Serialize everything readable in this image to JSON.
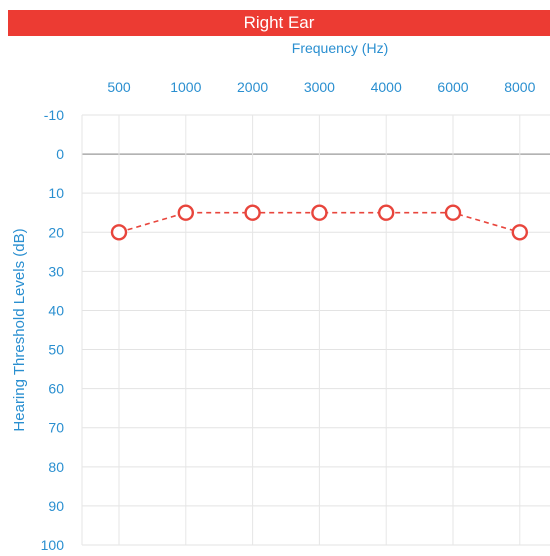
{
  "header": {
    "title": "Right Ear"
  },
  "chart_data": {
    "type": "line",
    "title": "Right Ear",
    "xlabel": "Frequency (Hz)",
    "ylabel": "Hearing Threshold Levels (dB)",
    "categories": [
      "500",
      "1000",
      "2000",
      "3000",
      "4000",
      "6000",
      "8000"
    ],
    "series": [
      {
        "values": [
          20,
          15,
          15,
          15,
          15,
          15,
          20
        ]
      }
    ],
    "yticks": [
      "-10",
      "0",
      "10",
      "20",
      "30",
      "40",
      "50",
      "60",
      "70",
      "80",
      "90",
      "100"
    ],
    "ylim": [
      -10,
      100
    ],
    "y_inverted": true,
    "grid": true,
    "colors": {
      "series": "#e8453c",
      "axis_text": "#2a8fd0",
      "banner": "#ec3b33"
    },
    "marker": "open-circle",
    "line_style": "dashed"
  }
}
